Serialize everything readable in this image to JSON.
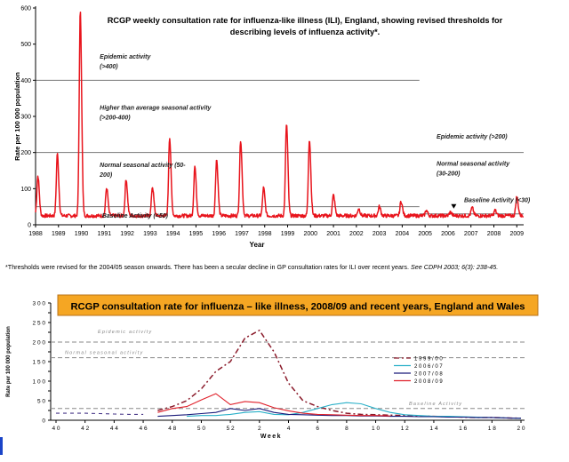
{
  "footnote": {
    "text": "*Thresholds were revised for the 2004/05 season onwards. There has been a secular decline in GP consultation rates for ILI over recent years. ",
    "ref": "See CDPH 2003; 6(3): 238-45."
  },
  "chart_data": [
    {
      "type": "line",
      "title": "RCGP weekly consultation rate for influenza-like illness (ILI), England, showing revised thresholds for describing levels of influenza activity*.",
      "title_lines": [
        "RCGP weekly consultation rate for influenza-like illness (ILI), England, showing revised thresholds for",
        "describing levels of influenza activity*."
      ],
      "xlabel": "Year",
      "ylabel": "Rate per 100 000 population",
      "xlim": [
        1988,
        2009.3
      ],
      "ylim": [
        0,
        600
      ],
      "yticks": [
        0,
        100,
        200,
        300,
        400,
        500,
        600
      ],
      "xtick_labels": [
        "1988",
        "1989",
        "1990",
        "1991",
        "1992",
        "1993",
        "1994",
        "1995",
        "1996",
        "1997",
        "1998",
        "1999",
        "2000",
        "2001",
        "2002",
        "2003",
        "2004",
        "2005",
        "2006",
        "2007",
        "2008",
        "2009"
      ],
      "grid": false,
      "series": [
        {
          "color": "#e8141c",
          "peaks": [
            {
              "year": 1988.95,
              "value": 192
            },
            {
              "year": 1989.95,
              "value": 585
            },
            {
              "year": 1991.1,
              "value": 97
            },
            {
              "year": 1991.95,
              "value": 122
            },
            {
              "year": 1993.1,
              "value": 100
            },
            {
              "year": 1993.85,
              "value": 236
            },
            {
              "year": 1994.95,
              "value": 157
            },
            {
              "year": 1995.9,
              "value": 176
            },
            {
              "year": 1996.95,
              "value": 230
            },
            {
              "year": 1997.95,
              "value": 97
            },
            {
              "year": 1998.95,
              "value": 274
            },
            {
              "year": 1999.95,
              "value": 232
            },
            {
              "year": 2001.0,
              "value": 77
            },
            {
              "year": 2002.1,
              "value": 40
            },
            {
              "year": 2003.0,
              "value": 45
            },
            {
              "year": 2003.95,
              "value": 60
            },
            {
              "year": 2005.05,
              "value": 35
            },
            {
              "year": 2006.1,
              "value": 30
            },
            {
              "year": 2007.05,
              "value": 42
            },
            {
              "year": 2008.05,
              "value": 35
            },
            {
              "year": 2009.0,
              "value": 72
            }
          ],
          "extra_peaks": [
            {
              "year": 1988.1,
              "value": 130
            }
          ],
          "baseline": 20
        }
      ],
      "thresholds": [
        {
          "value": 400,
          "x_from": 1988,
          "x_to": 2004.75,
          "style": "solid"
        },
        {
          "value": 200,
          "x_from": 1988,
          "x_to": 2009.3,
          "style": "solid"
        },
        {
          "value": 50,
          "x_from": 1988,
          "x_to": 2004.75,
          "style": "solid"
        },
        {
          "value": 30,
          "x_from": 2004.75,
          "x_to": 2009.3,
          "style": "solid"
        }
      ],
      "annotations": [
        {
          "lines": [
            "Epidemic activity",
            "(>400)"
          ],
          "year": 1990.8,
          "value": 460
        },
        {
          "lines": [
            "Higher than average seasonal activity",
            "(>200-400)"
          ],
          "year": 1990.8,
          "value": 318
        },
        {
          "lines": [
            "Normal seasonal activity (50-",
            "200)"
          ],
          "year": 1990.8,
          "value": 160
        },
        {
          "lines": [
            "Baseline Activity (<50)"
          ],
          "year": 1990.9,
          "value": 20
        },
        {
          "lines": [
            "Epidemic activity (>200)"
          ],
          "year": 2005.5,
          "value": 238
        },
        {
          "lines": [
            "Normal seasonal activity",
            "(30-200)"
          ],
          "year": 2005.5,
          "value": 163
        },
        {
          "lines": [
            "Baseline Activity (<30)"
          ],
          "year": 2006.7,
          "value": 63
        }
      ]
    },
    {
      "type": "line",
      "title": "RCGP consultation rate for influenza – like illness, 2008/09 and recent years, England and Wales",
      "xlabel": "Week",
      "ylabel": "Rate per 100 000 population",
      "ylim": [
        0,
        300
      ],
      "yticks": [
        0,
        25,
        50,
        75,
        100,
        125,
        150,
        175,
        200,
        225,
        250,
        275,
        300
      ],
      "ytick_labels": [
        "0",
        "5 0",
        "1 0 0",
        "1 5 0",
        "2 0 0",
        "2 5 0",
        "3 0 0"
      ],
      "ytick_values": [
        0,
        50,
        100,
        150,
        200,
        250,
        300
      ],
      "weeks": [
        40,
        41,
        42,
        43,
        44,
        45,
        46,
        47,
        48,
        49,
        50,
        51,
        52,
        1,
        2,
        3,
        4,
        5,
        6,
        7,
        8,
        9,
        10,
        11,
        12,
        13,
        14,
        15,
        16,
        17,
        18,
        19,
        20
      ],
      "xtick_labels": [
        "4 0",
        "4 2",
        "4 4",
        "4 6",
        "4 8",
        "5 0",
        "5 2",
        "2",
        "4",
        "6",
        "8",
        "1 0",
        "1 2",
        "1 4",
        "1 6",
        "1 8",
        "2 0"
      ],
      "grid": false,
      "thresholds": [
        {
          "value": 200,
          "label": "Epidemic activity"
        },
        {
          "value": 160,
          "label": "Normal seasonal activity"
        },
        {
          "value": 30,
          "label": "Baseline Activity"
        }
      ],
      "series": [
        {
          "name": "1 9 9 9 / 0 0",
          "color": "#8a1a2a",
          "dash": "6,3,2,3",
          "values": [
            null,
            null,
            null,
            null,
            null,
            null,
            null,
            25,
            35,
            50,
            80,
            125,
            150,
            210,
            230,
            175,
            95,
            50,
            35,
            25,
            18,
            15,
            14,
            13,
            12,
            11,
            10,
            9,
            8,
            7,
            7,
            6,
            5
          ]
        },
        {
          "name": "2 0 0 6 / 0 7",
          "color": "#2ab0c8",
          "dash": "",
          "values": [
            null,
            null,
            null,
            null,
            null,
            null,
            null,
            null,
            null,
            10,
            12,
            12,
            15,
            20,
            22,
            15,
            14,
            20,
            30,
            40,
            45,
            42,
            30,
            20,
            14,
            12,
            10,
            10,
            9,
            8,
            7,
            6,
            5
          ]
        },
        {
          "name": "2 0 0 7 / 0 8",
          "color": "#1a1a7a",
          "dash": "",
          "values": [
            null,
            null,
            null,
            null,
            null,
            null,
            null,
            10,
            12,
            14,
            17,
            20,
            30,
            25,
            30,
            20,
            15,
            14,
            13,
            12,
            12,
            11,
            11,
            10,
            10,
            9,
            9,
            8,
            8,
            7,
            7,
            6,
            5
          ]
        },
        {
          "name": "2 0 0 8 / 0 9",
          "color": "#e0202a",
          "dash": "",
          "values": [
            null,
            null,
            null,
            null,
            null,
            null,
            null,
            20,
            30,
            35,
            52,
            68,
            40,
            48,
            45,
            32,
            24,
            18,
            15,
            14,
            13,
            12,
            12,
            11,
            null,
            null,
            null,
            null,
            null,
            null,
            null,
            null,
            null
          ]
        },
        {
          "name": "",
          "color": "#4a3a8a",
          "dash": "4,4",
          "values": [
            18,
            18,
            18,
            17,
            16,
            15,
            15,
            null,
            null,
            null,
            null,
            null,
            null,
            null,
            null,
            null,
            null,
            null,
            null,
            null,
            null,
            null,
            null,
            null,
            null,
            null,
            null,
            null,
            null,
            null,
            null,
            null,
            null
          ]
        }
      ]
    }
  ]
}
